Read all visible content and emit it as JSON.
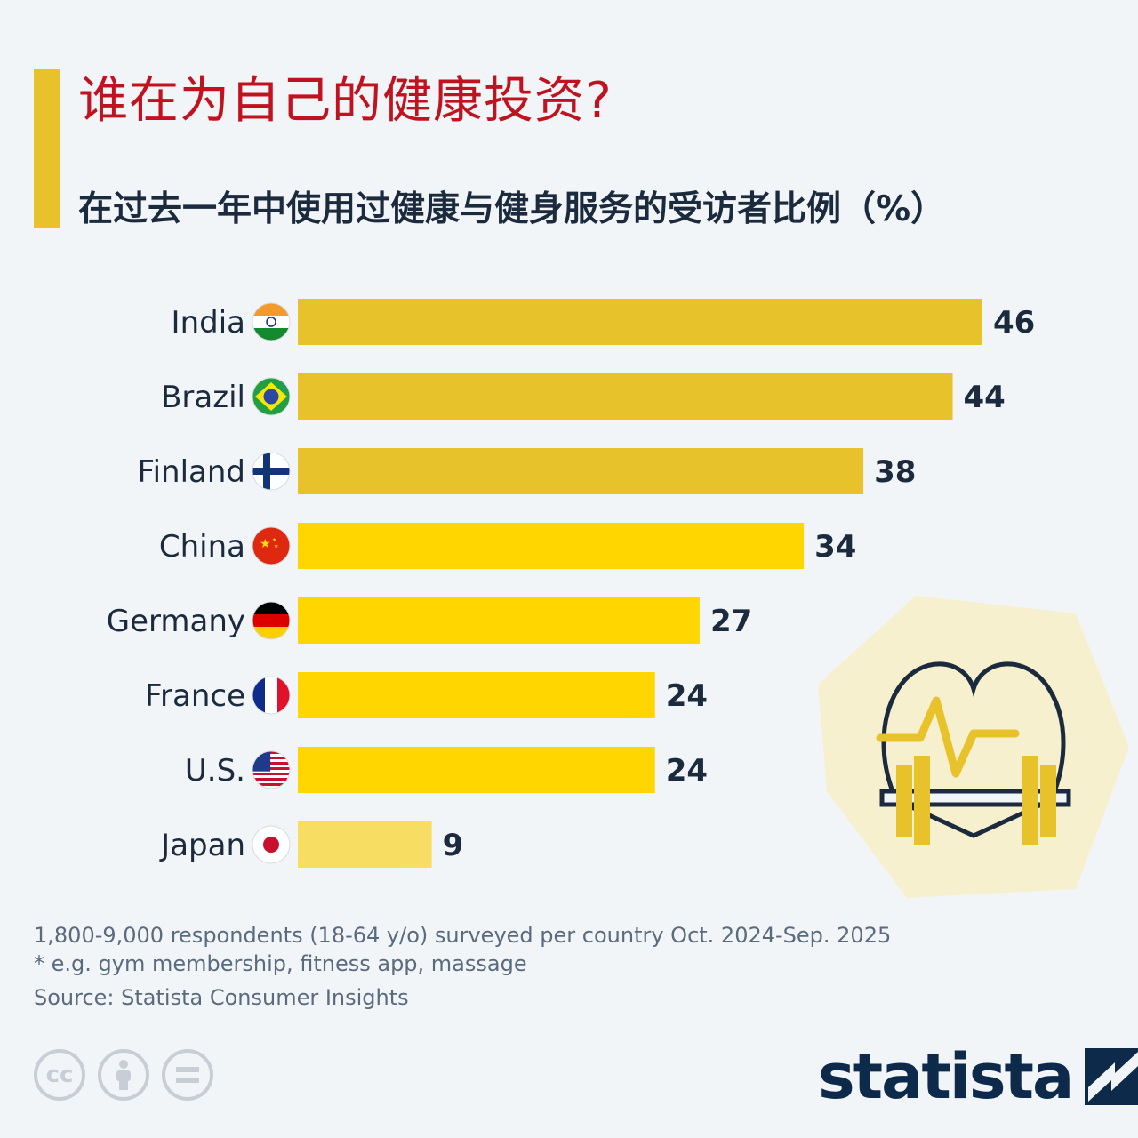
{
  "title": "谁在为自己的健康投资?",
  "subtitle": "在过去一年中使用过健康与健身服务的受访者比例（%）",
  "colors": {
    "accent": "#e8c22b",
    "title": "#c1121f",
    "bar_dark": "#e8c22b",
    "bar_mid": "#ffd600",
    "bar_light": "#f7dd62",
    "text": "#1b2a3c"
  },
  "chart_data": {
    "type": "bar",
    "orientation": "horizontal",
    "categories": [
      "India",
      "Brazil",
      "Finland",
      "China",
      "Germany",
      "France",
      "U.S.",
      "Japan"
    ],
    "values": [
      46,
      44,
      38,
      34,
      27,
      24,
      24,
      9
    ],
    "title": "谁在为自己的健康投资?",
    "xlabel": "",
    "ylabel": "",
    "xlim": [
      0,
      46
    ],
    "grid": false,
    "data_labels": true
  },
  "flags": [
    "india-flag-icon",
    "brazil-flag-icon",
    "finland-flag-icon",
    "china-flag-icon",
    "germany-flag-icon",
    "france-flag-icon",
    "us-flag-icon",
    "japan-flag-icon"
  ],
  "notes": [
    "1,800-9,000 respondents (18-64 y/o) surveyed per country Oct. 2024-Sep. 2025",
    "* e.g. gym membership, fitness app, massage"
  ],
  "source": "Source: Statista Consumer Insights",
  "license_icons": [
    "cc-icon",
    "attribution-icon",
    "no-derivatives-icon"
  ],
  "brand": "statista",
  "illustration": "heart-dumbbell-icon"
}
